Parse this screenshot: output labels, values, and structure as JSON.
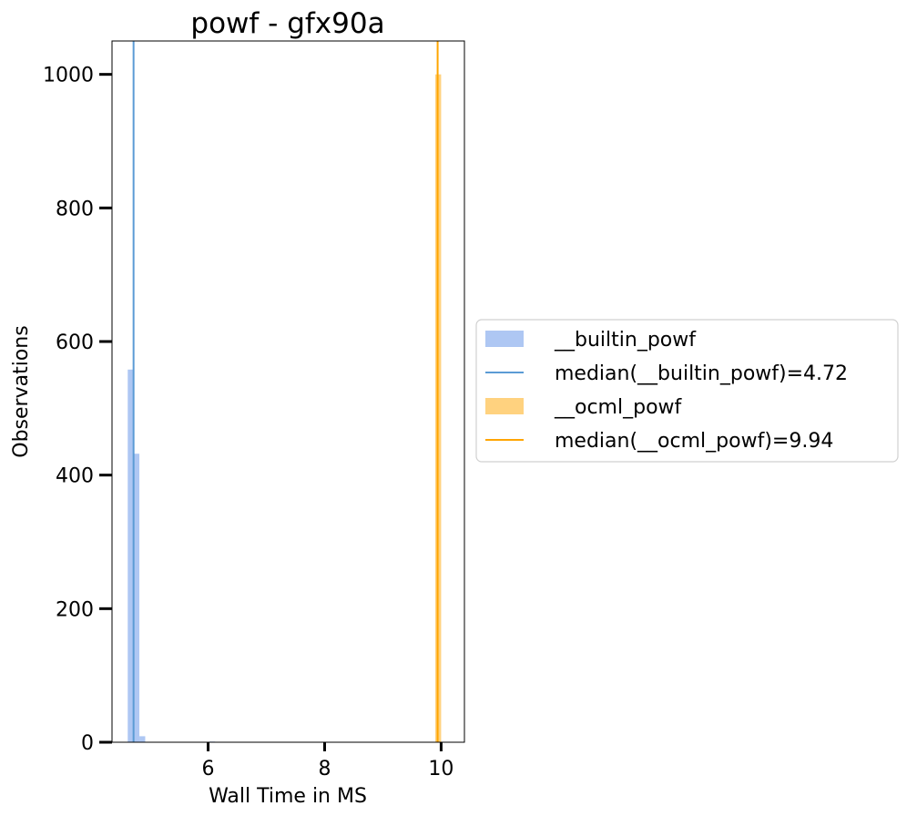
{
  "chart_data": {
    "type": "bar",
    "title": "powf - gfx90a",
    "xlabel": "Wall Time in MS",
    "ylabel": "Observations",
    "xlim": [
      4.35,
      10.4
    ],
    "ylim": [
      0,
      1050
    ],
    "xticks": [
      6,
      8,
      10
    ],
    "yticks": [
      0,
      200,
      400,
      600,
      800,
      1000
    ],
    "grid": false,
    "legend_position": "right-outside",
    "series": [
      {
        "name": "__builtin_powf",
        "kind": "histogram",
        "color": "#aec7f3",
        "bins": [
          {
            "x0": 4.62,
            "x1": 4.72,
            "count": 558
          },
          {
            "x0": 4.72,
            "x1": 4.82,
            "count": 432
          },
          {
            "x0": 4.82,
            "x1": 4.92,
            "count": 9
          },
          {
            "x0": 6.02,
            "x1": 6.12,
            "count": 1
          }
        ]
      },
      {
        "name": "median(__builtin_powf)=4.72",
        "kind": "vline",
        "color": "#5b9bd5",
        "x": 4.72
      },
      {
        "name": "__ocml_powf",
        "kind": "histogram",
        "color": "#ffd27f",
        "bins": [
          {
            "x0": 9.9,
            "x1": 10.0,
            "count": 1000
          }
        ]
      },
      {
        "name": "median(__ocml_powf)=9.94",
        "kind": "vline",
        "color": "#ffa500",
        "x": 9.94
      }
    ]
  }
}
